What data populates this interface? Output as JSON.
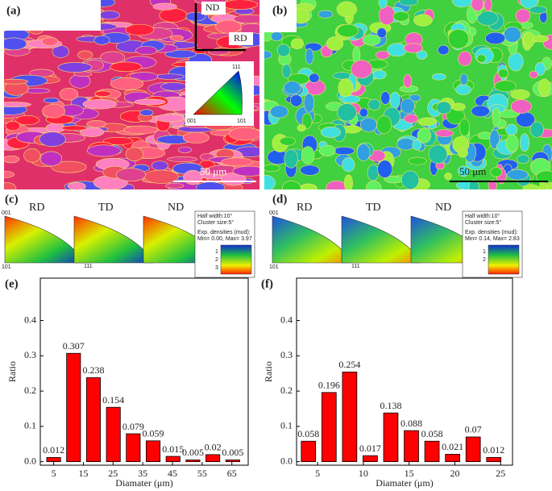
{
  "panels": {
    "a": {
      "label": "(a)",
      "axes": [
        "ND",
        "RD"
      ],
      "ipf": [
        "111",
        "001",
        "101"
      ],
      "scale": "50 μm"
    },
    "b": {
      "label": "(b)",
      "scale": "50 μm"
    },
    "c": {
      "label": "(c)",
      "directions": [
        "RD",
        "TD",
        "ND"
      ],
      "corners": [
        "001",
        "101",
        "111"
      ],
      "legend": [
        "Half width:10°",
        "Cluster size:5°",
        "Exp. densities (mud):",
        "Min= 0.00, Max= 3.97"
      ],
      "scale_labels": [
        1,
        2,
        3
      ]
    },
    "d": {
      "label": "(d)",
      "directions": [
        "RD",
        "TD",
        "ND"
      ],
      "corners": [
        "001",
        "101",
        "111"
      ],
      "legend": [
        "Half width:10°",
        "Cluster size:5°",
        "Exp. densities (mud):",
        "Min= 0.14, Max= 2.83"
      ],
      "scale_labels": [
        1,
        2
      ]
    }
  },
  "chart_data": [
    {
      "type": "bar",
      "title": "(e)",
      "x_label": "Diamater (μm)",
      "y_label": "Ratio",
      "color": "#ff0000",
      "x": [
        5,
        11.7,
        18.4,
        25.1,
        31.8,
        38.5,
        45.2,
        51.9,
        58.6,
        65.3
      ],
      "values": [
        0.012,
        0.307,
        0.238,
        0.154,
        0.079,
        0.059,
        0.015,
        0.005,
        0.02,
        0.005
      ],
      "xlim": [
        0.5,
        70.5
      ],
      "xticks": [
        5,
        15,
        25,
        35,
        45,
        55,
        65
      ],
      "ylim": [
        -0.01,
        0.52
      ],
      "yticks": [
        {
          "value": 0,
          "label": "0.0"
        },
        0.1,
        0.2,
        0.3,
        0.4
      ]
    },
    {
      "type": "bar",
      "title": "(f)",
      "x_label": "Diamater (μm)",
      "y_label": "Ratio",
      "color": "#ff0000",
      "x": [
        4,
        6.25,
        8.5,
        10.75,
        13,
        15.25,
        17.5,
        19.75,
        22,
        24.25
      ],
      "values": [
        0.058,
        0.196,
        0.254,
        0.017,
        0.138,
        0.088,
        0.058,
        0.021,
        0.07,
        0.012
      ],
      "xlim": [
        2.7,
        26.3
      ],
      "xticks": [
        5,
        10,
        15,
        20,
        25
      ],
      "ylim": [
        -0.01,
        0.52
      ],
      "yticks": [
        {
          "value": 0,
          "label": "0.0"
        },
        0.1,
        0.2,
        0.3,
        0.4
      ]
    }
  ]
}
